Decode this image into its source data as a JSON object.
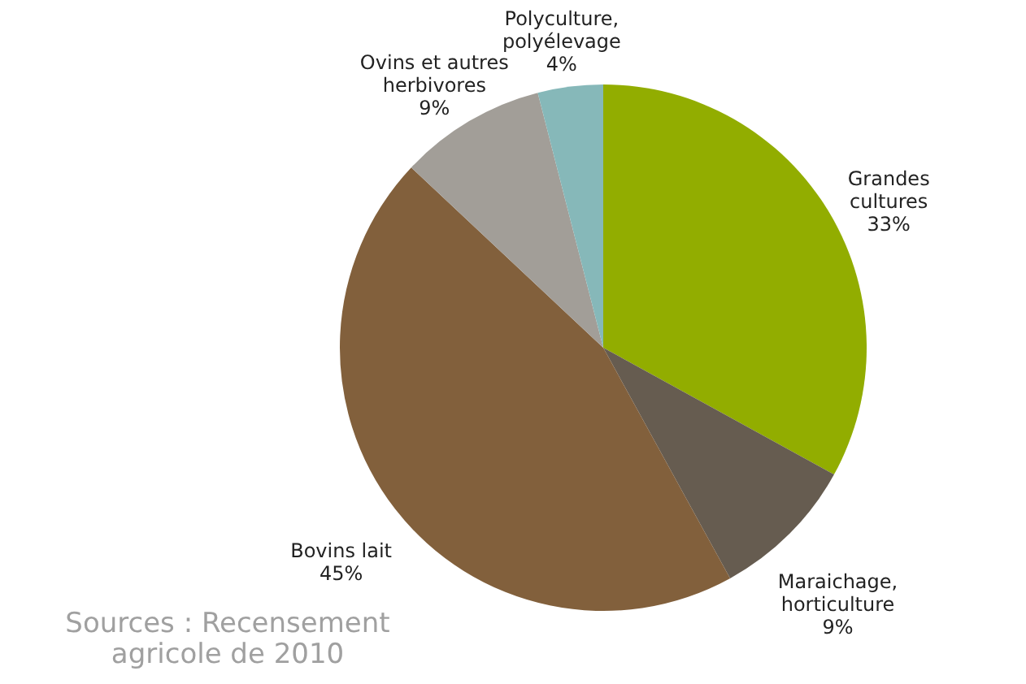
{
  "chart_data": {
    "type": "pie",
    "categories": [
      "Grandes\ncultures",
      "Maraichage,\nhorticulture",
      "Bovins lait",
      "Ovins et autres\nherbivores",
      "Polyculture,\npolyélevage"
    ],
    "values": [
      33,
      9,
      45,
      9,
      4
    ],
    "colors": [
      "#92ad00",
      "#665c50",
      "#82603c",
      "#a29e98",
      "#86b8b9"
    ],
    "value_labels": [
      "33%",
      "9%",
      "45%",
      "9%",
      "4%"
    ],
    "annotations": [
      "Sources : Recensement\nagricole de 2010"
    ]
  }
}
